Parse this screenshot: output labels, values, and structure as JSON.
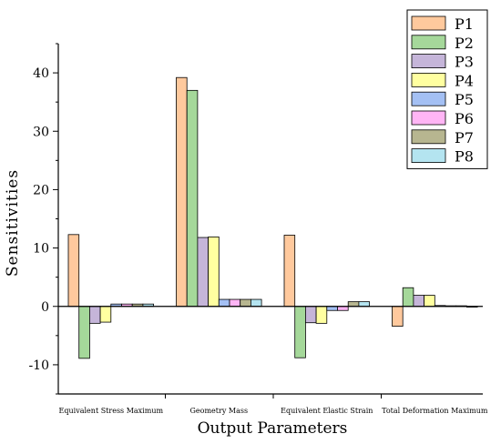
{
  "chart_data": {
    "type": "bar",
    "xlabel": "Output Parameters",
    "ylabel": "Sensitivities",
    "ylim": [
      -15,
      45
    ],
    "yticks": [
      -10,
      0,
      10,
      20,
      30,
      40
    ],
    "grid": false,
    "legend_position": "top-right",
    "categories": [
      "Equivalent Stress Maximum",
      "Geometry Mass",
      "Equivalent Elastic Strain",
      "Total Deformation Maximum"
    ],
    "series": [
      {
        "name": "P1",
        "color": "#FFC99D",
        "values": [
          12.3,
          39.2,
          12.2,
          -3.4
        ]
      },
      {
        "name": "P2",
        "color": "#A5D89A",
        "values": [
          -8.9,
          37.0,
          -8.8,
          3.2
        ]
      },
      {
        "name": "P3",
        "color": "#C5B5D9",
        "values": [
          -2.9,
          11.8,
          -2.8,
          1.9
        ]
      },
      {
        "name": "P4",
        "color": "#FFFFA0",
        "values": [
          -2.7,
          11.9,
          -2.9,
          1.9
        ]
      },
      {
        "name": "P5",
        "color": "#A4C0F4",
        "values": [
          0.4,
          1.2,
          -0.7,
          0.15
        ]
      },
      {
        "name": "P6",
        "color": "#FFB5F5",
        "values": [
          0.4,
          1.2,
          -0.7,
          0.1
        ]
      },
      {
        "name": "P7",
        "color": "#B7B690",
        "values": [
          0.4,
          1.2,
          0.8,
          0.1
        ]
      },
      {
        "name": "P8",
        "color": "#B4E4F0",
        "values": [
          0.4,
          1.2,
          0.8,
          -0.1
        ]
      }
    ]
  }
}
